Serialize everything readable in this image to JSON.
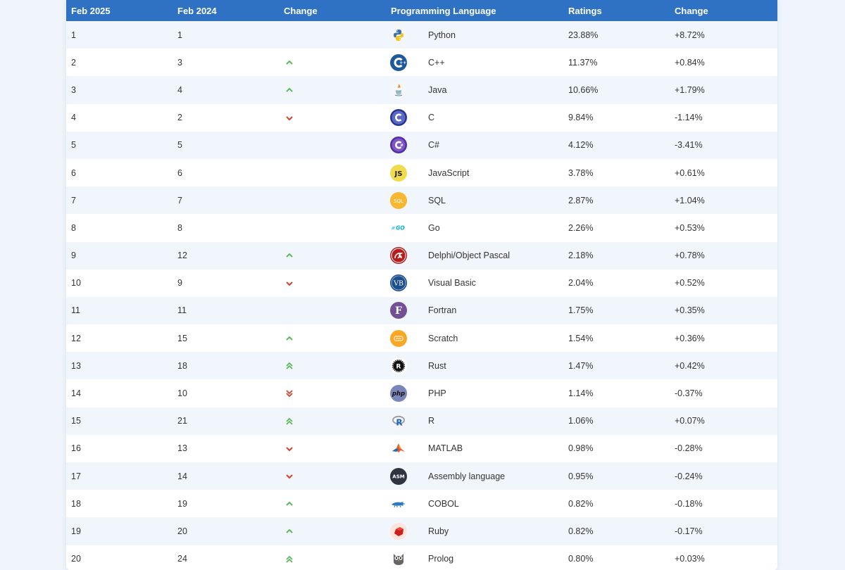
{
  "header": {
    "col1": "Feb 2025",
    "col2": "Feb 2024",
    "col3": "Change",
    "col4": "Programming Language",
    "col5": "Ratings",
    "col6": "Change"
  },
  "colors": {
    "header_bg": "#2f72c4",
    "up": "#5cb85c",
    "down": "#d9412b",
    "row_alt": "#f1f6fc"
  },
  "rows": [
    {
      "rank": "1",
      "prev": "1",
      "trend": "none",
      "icon": "python-icon",
      "lang": "Python",
      "rating": "23.88%",
      "delta": "+8.72%"
    },
    {
      "rank": "2",
      "prev": "3",
      "trend": "up",
      "icon": "cplusplus-icon",
      "lang": "C++",
      "rating": "11.37%",
      "delta": "+0.84%"
    },
    {
      "rank": "3",
      "prev": "4",
      "trend": "up",
      "icon": "java-icon",
      "lang": "Java",
      "rating": "10.66%",
      "delta": "+1.79%"
    },
    {
      "rank": "4",
      "prev": "2",
      "trend": "down",
      "icon": "c-icon",
      "lang": "C",
      "rating": "9.84%",
      "delta": "-1.14%"
    },
    {
      "rank": "5",
      "prev": "5",
      "trend": "none",
      "icon": "csharp-icon",
      "lang": "C#",
      "rating": "4.12%",
      "delta": "-3.41%"
    },
    {
      "rank": "6",
      "prev": "6",
      "trend": "none",
      "icon": "javascript-icon",
      "lang": "JavaScript",
      "rating": "3.78%",
      "delta": "+0.61%"
    },
    {
      "rank": "7",
      "prev": "7",
      "trend": "none",
      "icon": "sql-icon",
      "lang": "SQL",
      "rating": "2.87%",
      "delta": "+1.04%"
    },
    {
      "rank": "8",
      "prev": "8",
      "trend": "none",
      "icon": "go-icon",
      "lang": "Go",
      "rating": "2.26%",
      "delta": "+0.53%"
    },
    {
      "rank": "9",
      "prev": "12",
      "trend": "up",
      "icon": "delphi-icon",
      "lang": "Delphi/Object Pascal",
      "rating": "2.18%",
      "delta": "+0.78%"
    },
    {
      "rank": "10",
      "prev": "9",
      "trend": "down",
      "icon": "visual-basic-icon",
      "lang": "Visual Basic",
      "rating": "2.04%",
      "delta": "+0.52%"
    },
    {
      "rank": "11",
      "prev": "11",
      "trend": "none",
      "icon": "fortran-icon",
      "lang": "Fortran",
      "rating": "1.75%",
      "delta": "+0.35%"
    },
    {
      "rank": "12",
      "prev": "15",
      "trend": "up",
      "icon": "scratch-icon",
      "lang": "Scratch",
      "rating": "1.54%",
      "delta": "+0.36%"
    },
    {
      "rank": "13",
      "prev": "18",
      "trend": "up2",
      "icon": "rust-icon",
      "lang": "Rust",
      "rating": "1.47%",
      "delta": "+0.42%"
    },
    {
      "rank": "14",
      "prev": "10",
      "trend": "down2",
      "icon": "php-icon",
      "lang": "PHP",
      "rating": "1.14%",
      "delta": "-0.37%"
    },
    {
      "rank": "15",
      "prev": "21",
      "trend": "up2",
      "icon": "r-icon",
      "lang": "R",
      "rating": "1.06%",
      "delta": "+0.07%"
    },
    {
      "rank": "16",
      "prev": "13",
      "trend": "down",
      "icon": "matlab-icon",
      "lang": "MATLAB",
      "rating": "0.98%",
      "delta": "-0.28%"
    },
    {
      "rank": "17",
      "prev": "14",
      "trend": "down",
      "icon": "assembly-icon",
      "lang": "Assembly language",
      "rating": "0.95%",
      "delta": "-0.24%"
    },
    {
      "rank": "18",
      "prev": "19",
      "trend": "up",
      "icon": "cobol-icon",
      "lang": "COBOL",
      "rating": "0.82%",
      "delta": "-0.18%"
    },
    {
      "rank": "19",
      "prev": "20",
      "trend": "up",
      "icon": "ruby-icon",
      "lang": "Ruby",
      "rating": "0.82%",
      "delta": "-0.17%"
    },
    {
      "rank": "20",
      "prev": "24",
      "trend": "up2",
      "icon": "prolog-icon",
      "lang": "Prolog",
      "rating": "0.80%",
      "delta": "+0.03%"
    }
  ]
}
